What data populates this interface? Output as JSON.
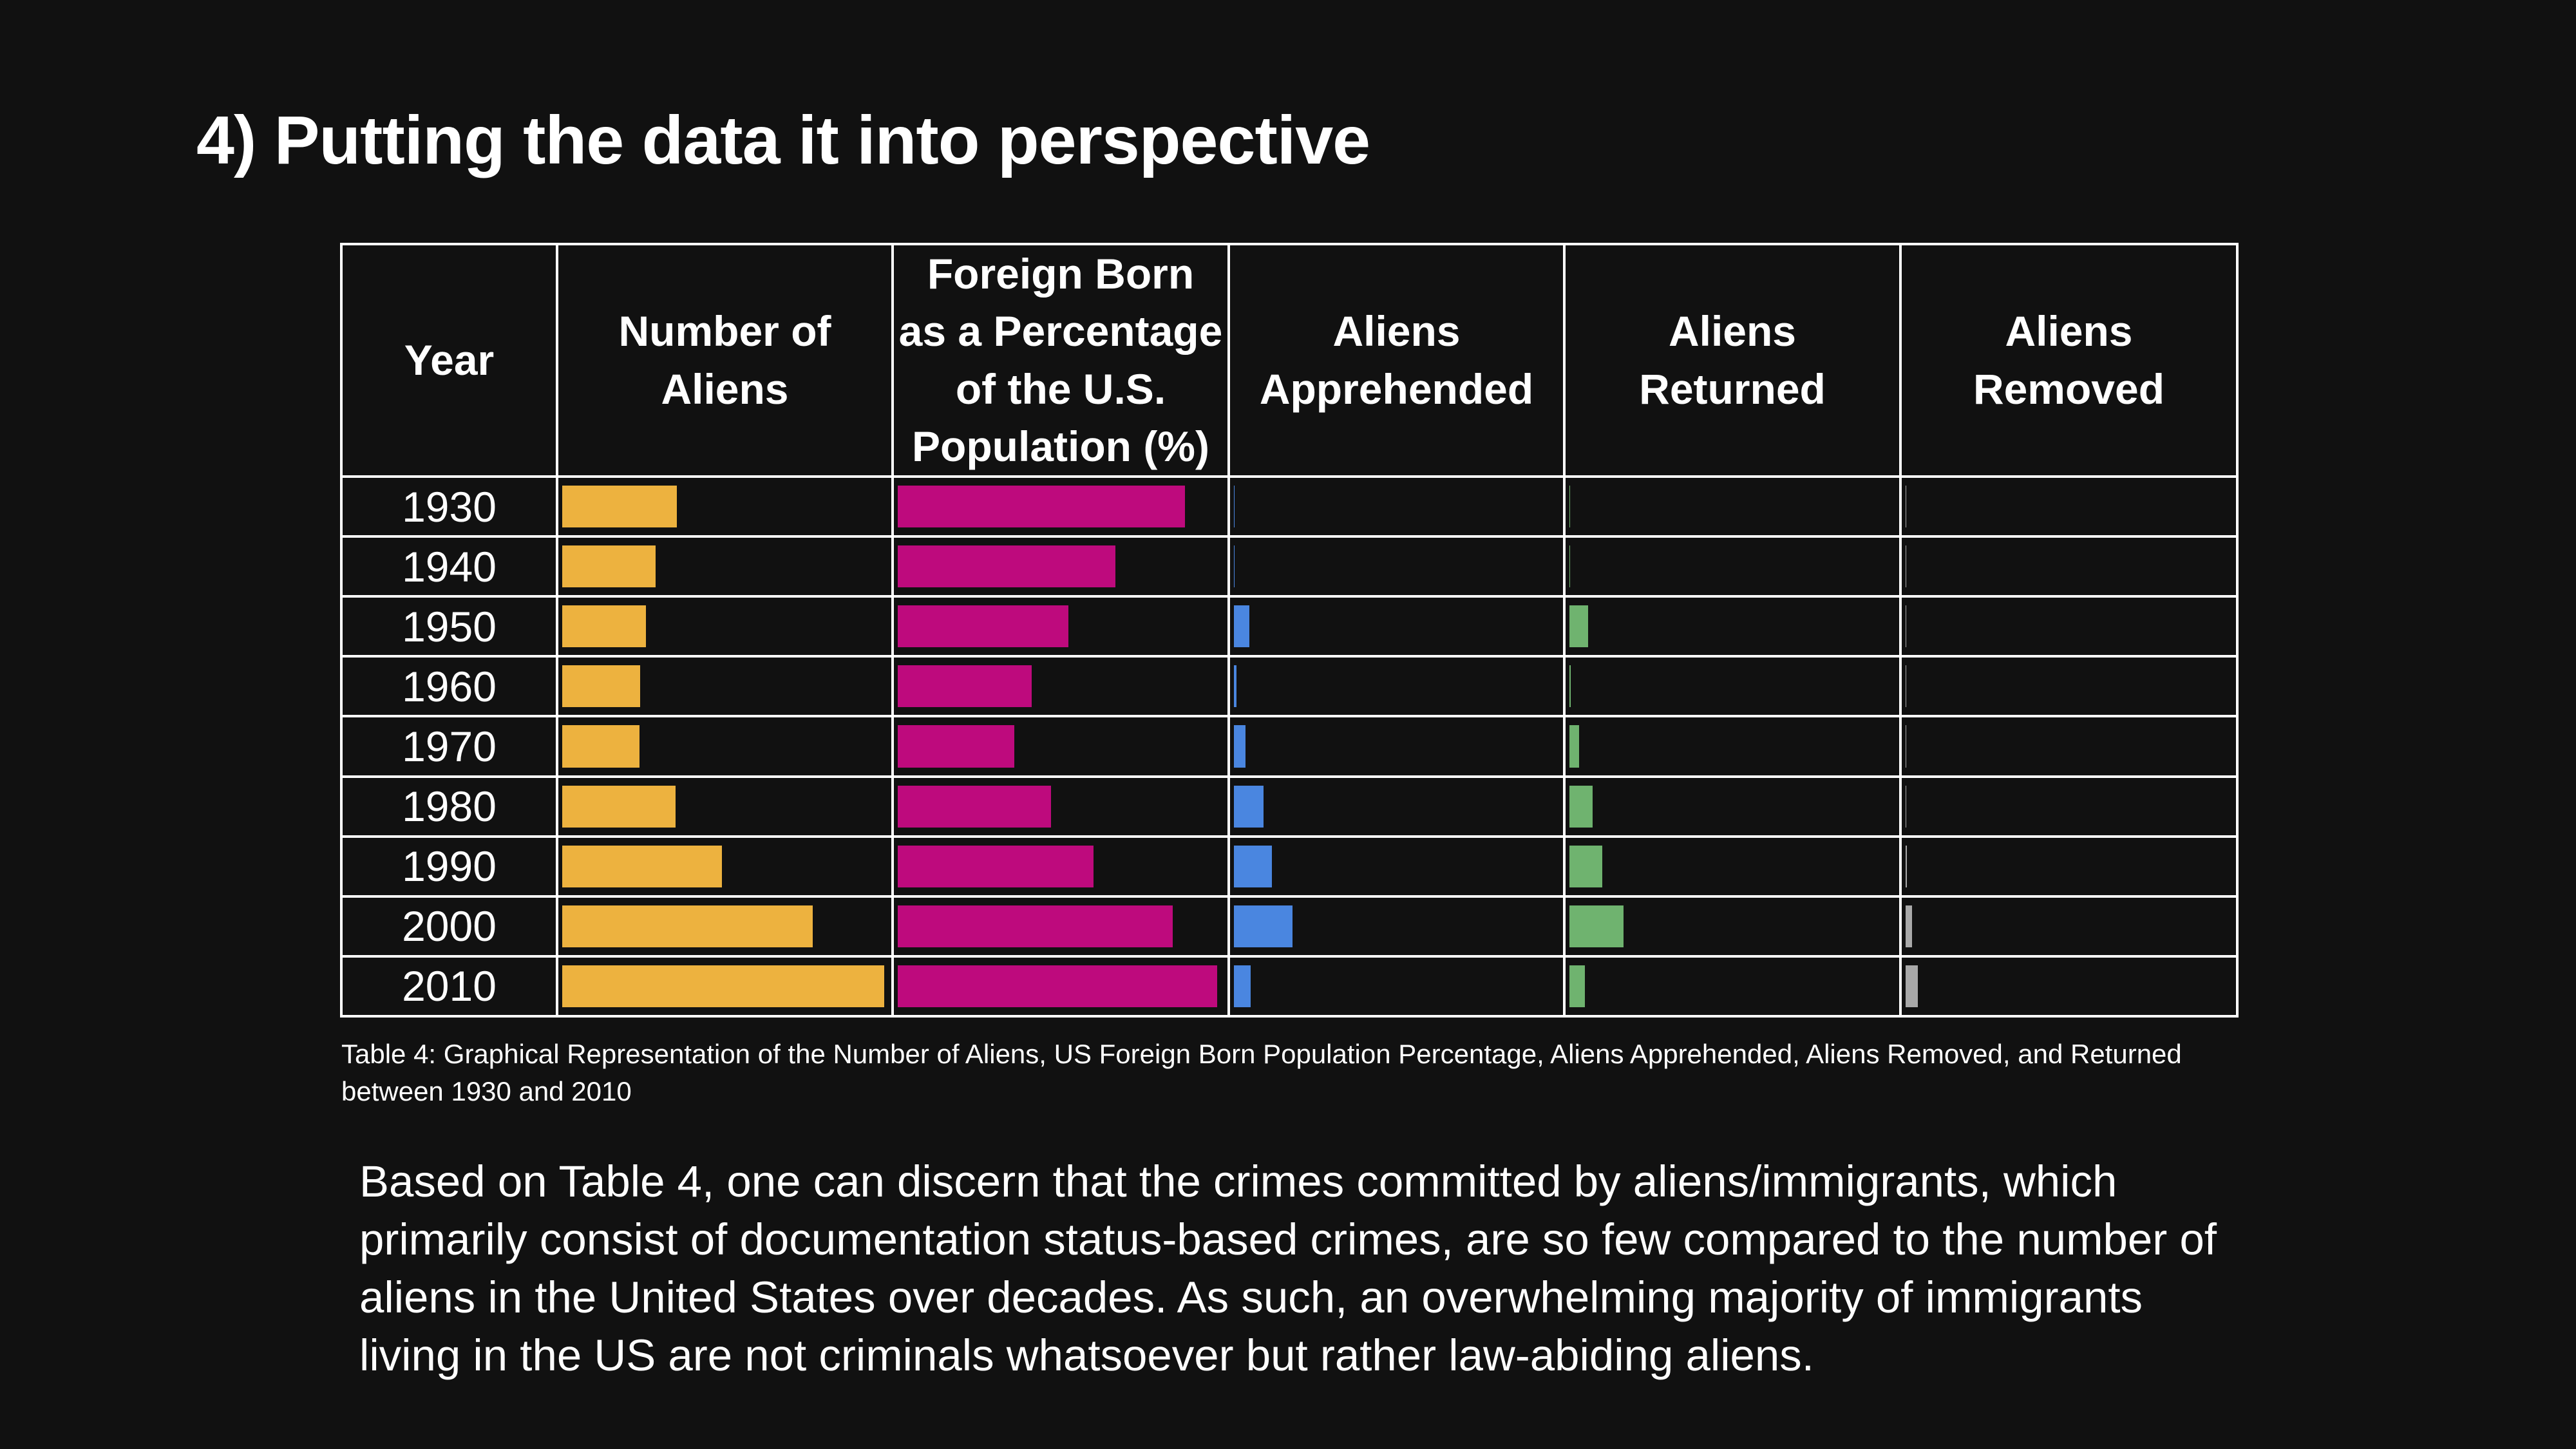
{
  "title": "4) Putting the data it into perspective",
  "colors": {
    "aliens": "#EDB23F",
    "foreign_born_pct": "#BE0A7D",
    "apprehended": "#4A86E0",
    "returned": "#6FB36F",
    "removed": "#A9A9A9"
  },
  "table": {
    "headers": [
      "Year",
      "Number of Aliens",
      "Foreign Born as a Percentage of the U.S. Population (%)",
      "Aliens Apprehended",
      "Aliens Returned",
      "Aliens Removed"
    ]
  },
  "chart_data": {
    "type": "table",
    "years": [
      "1930",
      "1940",
      "1950",
      "1960",
      "1970",
      "1980",
      "1990",
      "2000",
      "2010"
    ],
    "series": [
      {
        "key": "aliens",
        "values": [
          14.2,
          11.6,
          10.4,
          9.7,
          9.6,
          14.1,
          19.8,
          31.1,
          40.0
        ]
      },
      {
        "key": "foreign_born_pct",
        "values": [
          11.6,
          8.8,
          6.9,
          5.4,
          4.7,
          6.2,
          7.9,
          11.1,
          12.9
        ]
      },
      {
        "key": "apprehended",
        "values": [
          0.02,
          0.01,
          0.47,
          0.07,
          0.35,
          0.91,
          1.17,
          1.81,
          0.52
        ]
      },
      {
        "key": "returned",
        "values": [
          0.01,
          0.01,
          0.57,
          0.04,
          0.3,
          0.72,
          1.02,
          1.68,
          0.48
        ]
      },
      {
        "key": "removed",
        "values": [
          0.02,
          0.01,
          0.02,
          0.01,
          0.02,
          0.02,
          0.03,
          0.19,
          0.38
        ]
      }
    ],
    "scales": {
      "aliens": 40.0,
      "foreign_born_pct": 13.0,
      "apprehended": 10.0,
      "returned": 10.0,
      "removed": 10.0
    }
  },
  "caption": "Table 4: Graphical Representation of the Number of Aliens, US Foreign Born Population Percentage, Aliens Apprehended, Aliens Removed, and Returned between 1930 and 2010",
  "summary": "Based on Table 4, one can discern that the crimes committed by aliens/immigrants, which primarily consist of documentation status-based crimes, are so few compared to the number of aliens in the United States over decades. As such, an overwhelming majority of immigrants living in the US are not criminals whatsoever but rather law-abiding aliens."
}
